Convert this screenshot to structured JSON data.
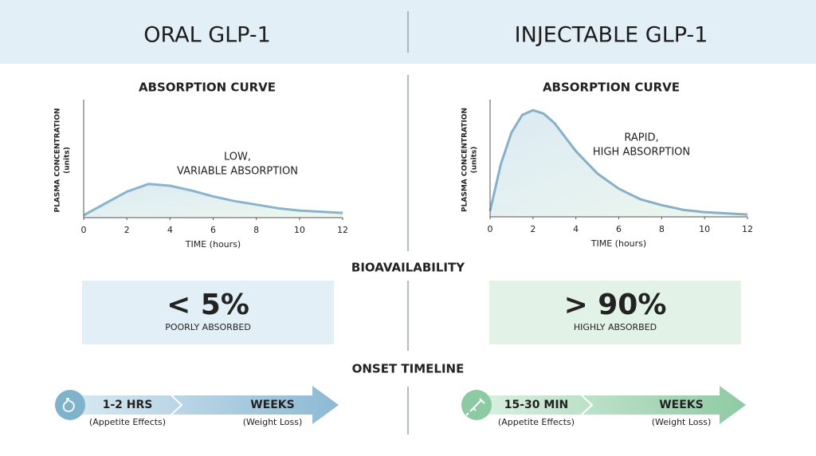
{
  "header": {
    "left_title": "ORAL GLP-1",
    "right_title": "INJECTABLE GLP-1"
  },
  "chart_data": [
    {
      "type": "line",
      "title": "ABSORPTION CURVE",
      "y_label": [
        "PLASMA CONCENTRATION",
        "(units)"
      ],
      "x_label": "TIME (hours)",
      "annotation": [
        "LOW,",
        "VARIABLE ABSORPTION"
      ],
      "x": [
        0,
        1,
        2,
        3,
        4,
        5,
        6,
        7,
        8,
        9,
        10,
        11,
        12
      ],
      "values": [
        2,
        12,
        22,
        28.5,
        27,
        23,
        18,
        14,
        11,
        8,
        6,
        5,
        4
      ],
      "color": "#8ab4cc",
      "xlim": [
        0,
        12
      ],
      "xticks": [
        0,
        2,
        4,
        6,
        8,
        10,
        12
      ],
      "ylim": [
        0,
        100
      ]
    },
    {
      "type": "line",
      "title": "ABSORPTION CURVE",
      "y_label": [
        "PLASMA CONCENTRATION",
        "(units)"
      ],
      "x_label": "TIME (hours)",
      "annotation": [
        "RAPID,",
        "HIGH ABSORPTION"
      ],
      "x": [
        0,
        0.5,
        1,
        1.5,
        2,
        2.5,
        3,
        4,
        5,
        6,
        7,
        8,
        9,
        10,
        11,
        12
      ],
      "values": [
        5,
        45,
        72,
        87,
        91,
        88,
        80,
        56,
        37,
        24,
        15,
        10,
        6,
        4,
        3,
        2
      ],
      "color": "#86b0c8",
      "xlim": [
        0,
        12
      ],
      "xticks": [
        0,
        2,
        4,
        6,
        8,
        10,
        12
      ],
      "ylim": [
        0,
        100
      ]
    }
  ],
  "bioavailability": {
    "title": "BIOAVAILABILITY",
    "panels": [
      {
        "value": "< 5%",
        "label": "POORLY ABSORBED"
      },
      {
        "value": "> 90%",
        "label": "HIGHLY ABSORBED"
      }
    ]
  },
  "onset": {
    "title": "ONSET TIMELINE",
    "timelines": [
      {
        "stages": [
          {
            "label": "1-2 HRS",
            "note": "(Appetite Effects)"
          },
          {
            "label": "WEEKS",
            "note": "(Weight Loss)"
          }
        ]
      },
      {
        "stages": [
          {
            "label": "15-30 MIN",
            "note": "(Appetite Effects)"
          },
          {
            "label": "WEEKS",
            "note": "(Weight Loss)"
          }
        ]
      }
    ]
  }
}
